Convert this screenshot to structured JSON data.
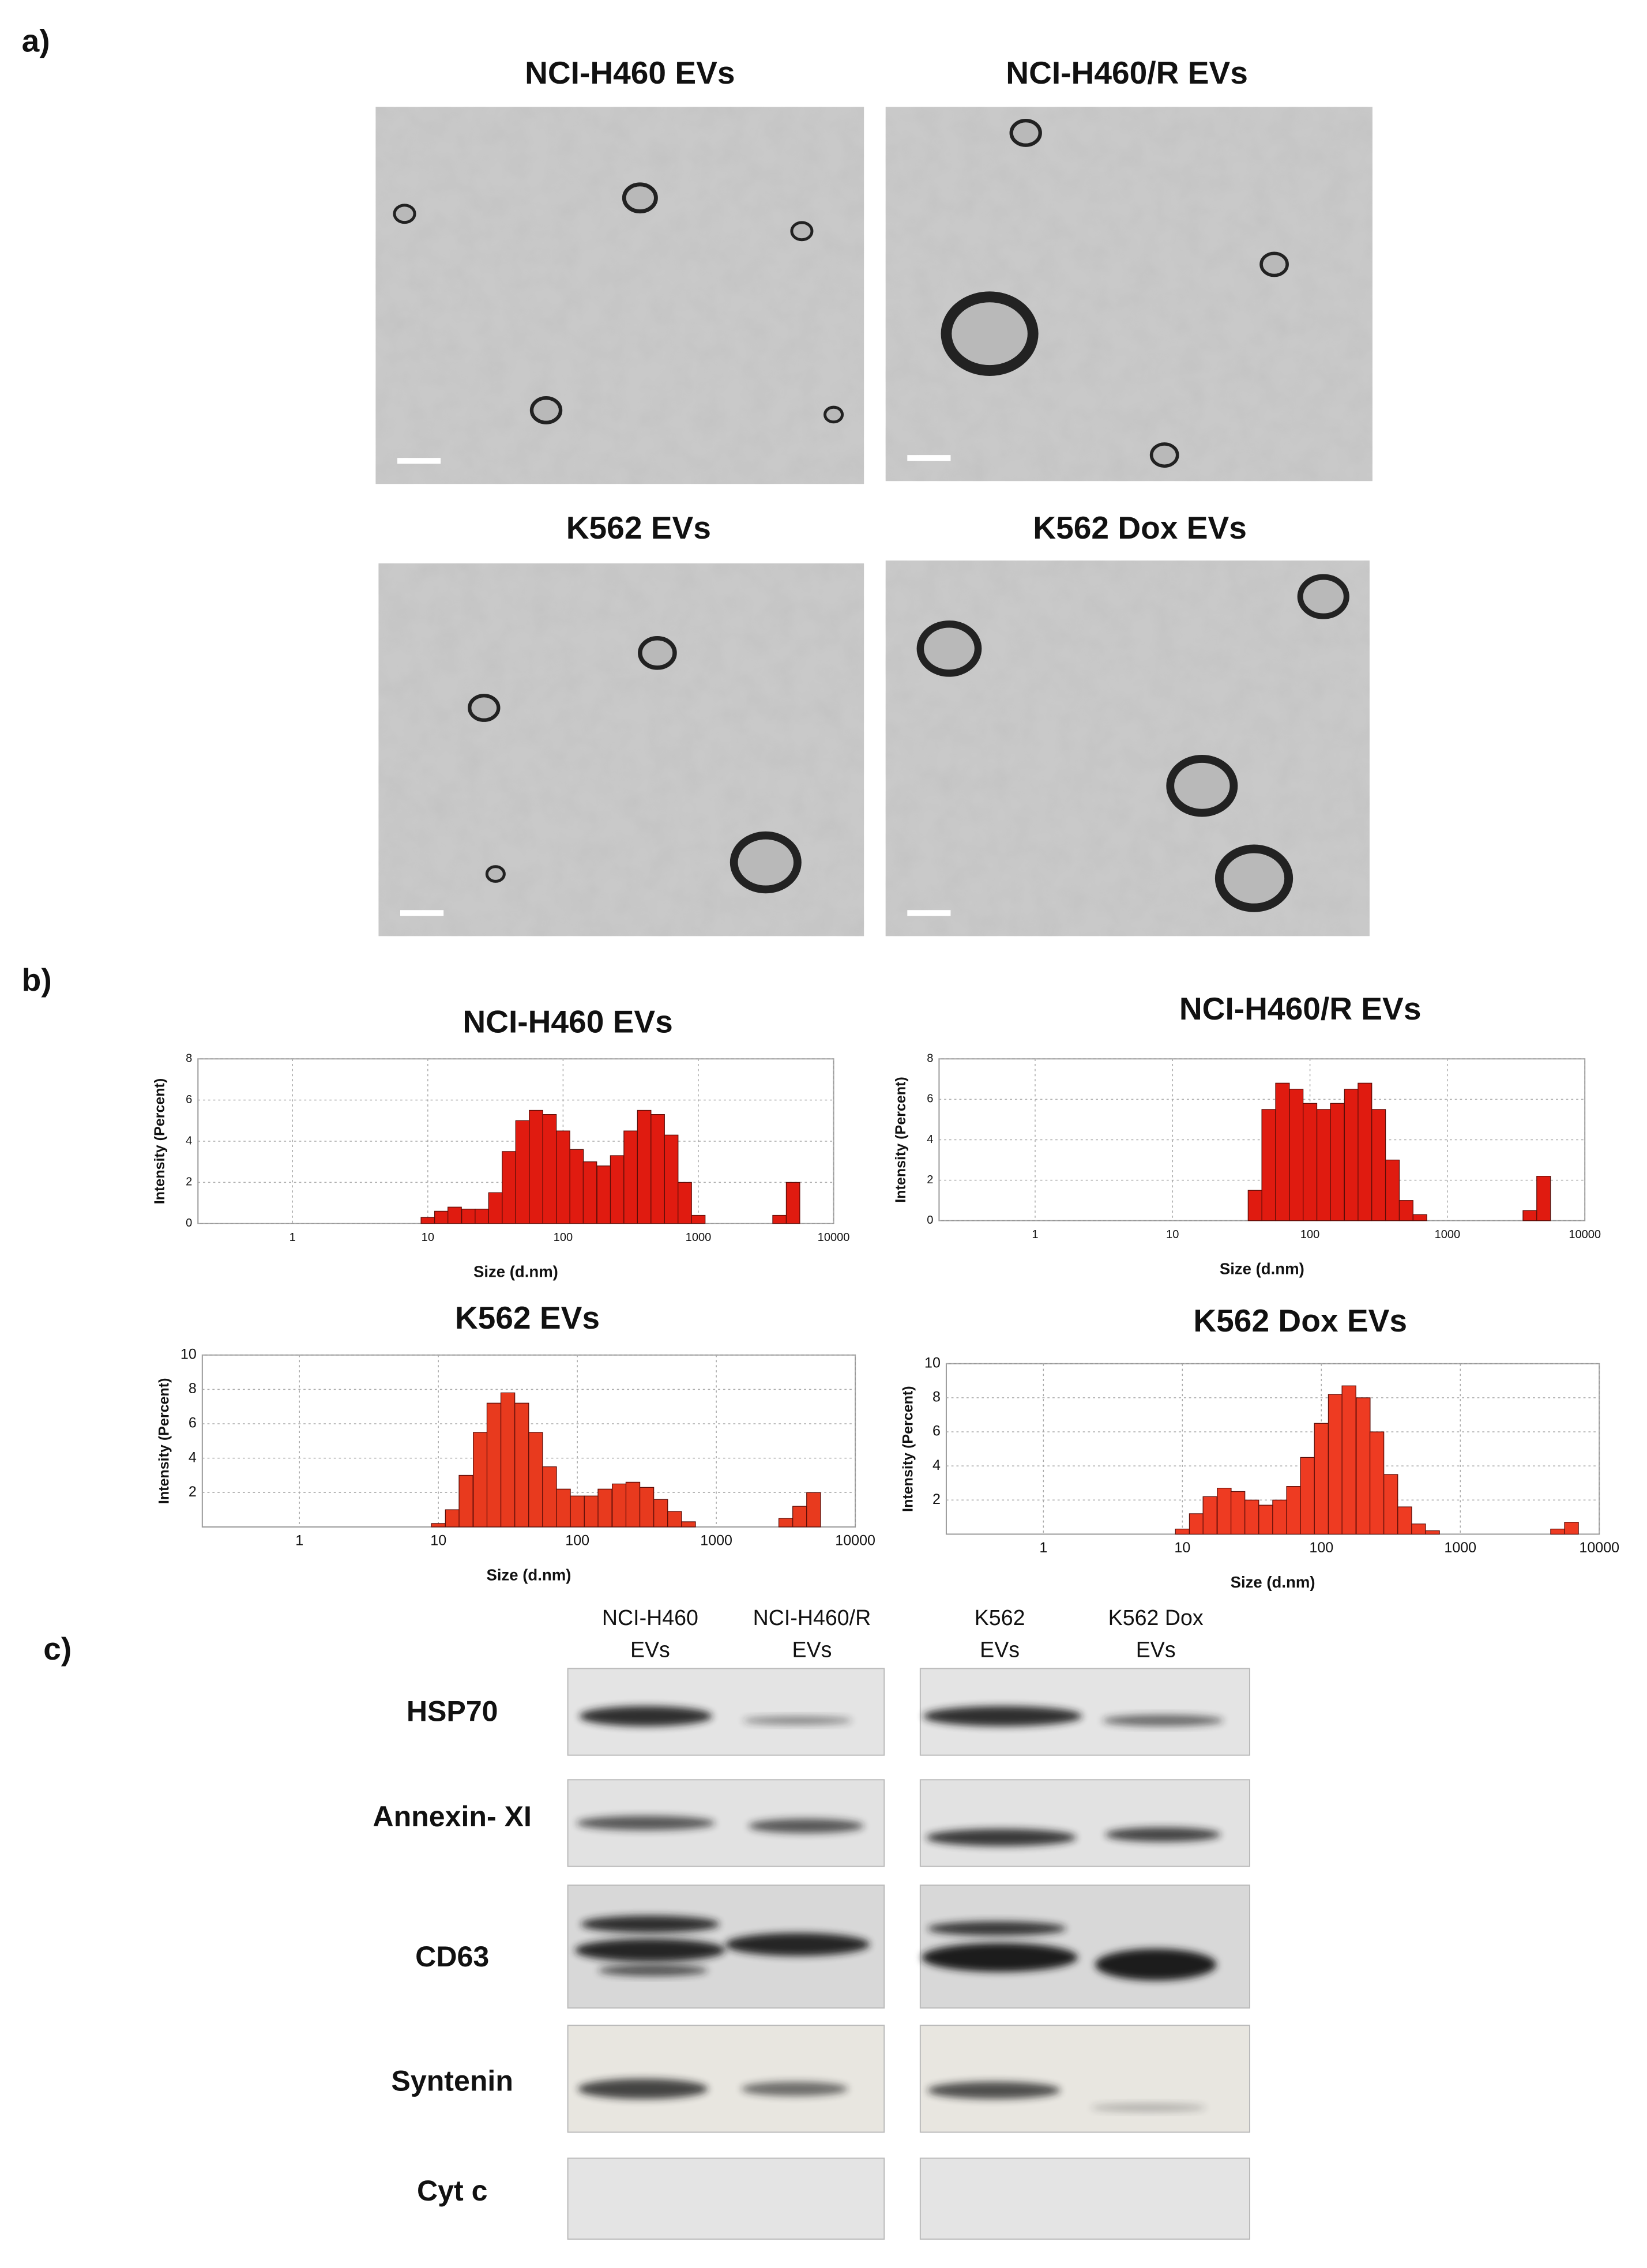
{
  "panels": [
    {
      "label": "a)"
    },
    {
      "label": "b)"
    },
    {
      "label": "c)"
    }
  ],
  "micrographs": [
    {
      "title": "NCI-H460 EVs"
    },
    {
      "title": "NCI-H460/R EVs"
    },
    {
      "title": "K562 EVs"
    },
    {
      "title": "K562 Dox EVs"
    }
  ],
  "chart_data": [
    {
      "type": "bar",
      "title": "NCI-H460 EVs",
      "x_label": "Size (d.nm)",
      "y_label": "Intensity (Percent)",
      "color": "#e01b10",
      "xscale": "log",
      "grid": true,
      "xlim": [
        0.2,
        10000
      ],
      "xticks": [
        1,
        10,
        100,
        1000,
        10000
      ],
      "ylim": [
        0,
        8
      ],
      "yticks": [
        0,
        2,
        4,
        6,
        8
      ],
      "x": [
        10,
        12.6,
        15.8,
        20,
        25.1,
        31.6,
        39.8,
        50.1,
        63.1,
        79.4,
        100,
        126,
        158,
        200,
        251,
        316,
        398,
        501,
        631,
        794,
        1000,
        3981,
        5012
      ],
      "values": [
        0.3,
        0.6,
        0.8,
        0.7,
        0.7,
        1.5,
        3.5,
        5.0,
        5.5,
        5.3,
        4.5,
        3.6,
        3.0,
        2.8,
        3.3,
        4.5,
        5.5,
        5.3,
        4.3,
        2.0,
        0.4,
        0.4,
        2.0
      ]
    },
    {
      "type": "bar",
      "title": "NCI-H460/R EVs",
      "x_label": "Size (d.nm)",
      "y_label": "Intensity (Percent)",
      "color": "#e01b10",
      "xscale": "log",
      "grid": true,
      "xlim": [
        0.2,
        10000
      ],
      "xticks": [
        1,
        10,
        100,
        1000,
        10000
      ],
      "ylim": [
        0,
        8
      ],
      "yticks": [
        0,
        2,
        4,
        6,
        8
      ],
      "x": [
        39.8,
        50.1,
        63.1,
        79.4,
        100,
        126,
        158,
        200,
        251,
        316,
        398,
        501,
        631,
        3981,
        5012
      ],
      "values": [
        1.5,
        5.5,
        6.8,
        6.5,
        5.8,
        5.5,
        5.8,
        6.5,
        6.8,
        5.5,
        3.0,
        1.0,
        0.3,
        0.5,
        2.2
      ]
    },
    {
      "type": "bar",
      "title": "K562 EVs",
      "x_label": "Size (d.nm)",
      "y_label": "Intensity (Percent)",
      "color": "#e83a1e",
      "xscale": "log",
      "grid": true,
      "xlim": [
        0.2,
        10000
      ],
      "xticks": [
        1,
        10,
        100,
        1000,
        10000
      ],
      "ylim": [
        0,
        10
      ],
      "yticks": [
        2,
        4,
        6,
        8,
        10
      ],
      "x": [
        10,
        12.6,
        15.8,
        20,
        25.1,
        31.6,
        39.8,
        50.1,
        63.1,
        79.4,
        100,
        126,
        158,
        200,
        251,
        316,
        398,
        501,
        631,
        3162,
        3981,
        5012
      ],
      "values": [
        0.2,
        1.0,
        3.0,
        5.5,
        7.2,
        7.8,
        7.2,
        5.5,
        3.5,
        2.2,
        1.8,
        1.8,
        2.2,
        2.5,
        2.6,
        2.3,
        1.6,
        0.9,
        0.3,
        0.5,
        1.2,
        2.0
      ]
    },
    {
      "type": "bar",
      "title": "K562 Dox EVs",
      "x_label": "Size (d.nm)",
      "y_label": "Intensity (Percent)",
      "color": "#ee3b22",
      "xscale": "log",
      "grid": true,
      "xlim": [
        0.2,
        10000
      ],
      "xticks": [
        1,
        10,
        100,
        1000,
        10000
      ],
      "ylim": [
        0,
        10
      ],
      "yticks": [
        2,
        4,
        6,
        8,
        10
      ],
      "x": [
        10,
        12.6,
        15.8,
        20,
        25.1,
        31.6,
        39.8,
        50.1,
        63.1,
        79.4,
        100,
        126,
        158,
        200,
        251,
        316,
        398,
        501,
        631,
        5012,
        6310
      ],
      "values": [
        0.3,
        1.2,
        2.2,
        2.7,
        2.5,
        2.0,
        1.7,
        2.0,
        2.8,
        4.5,
        6.5,
        8.2,
        8.7,
        8.0,
        6.0,
        3.5,
        1.6,
        0.6,
        0.2,
        0.3,
        0.7
      ]
    }
  ],
  "blots": {
    "columns": [
      "NCI-H460 EVs",
      "NCI-H460/R EVs",
      "K562 EVs",
      "K562 Dox EVs"
    ],
    "rows": [
      "HSP70",
      "Annexin- XI",
      "CD63",
      "Syntenin",
      "Cyt c"
    ]
  }
}
